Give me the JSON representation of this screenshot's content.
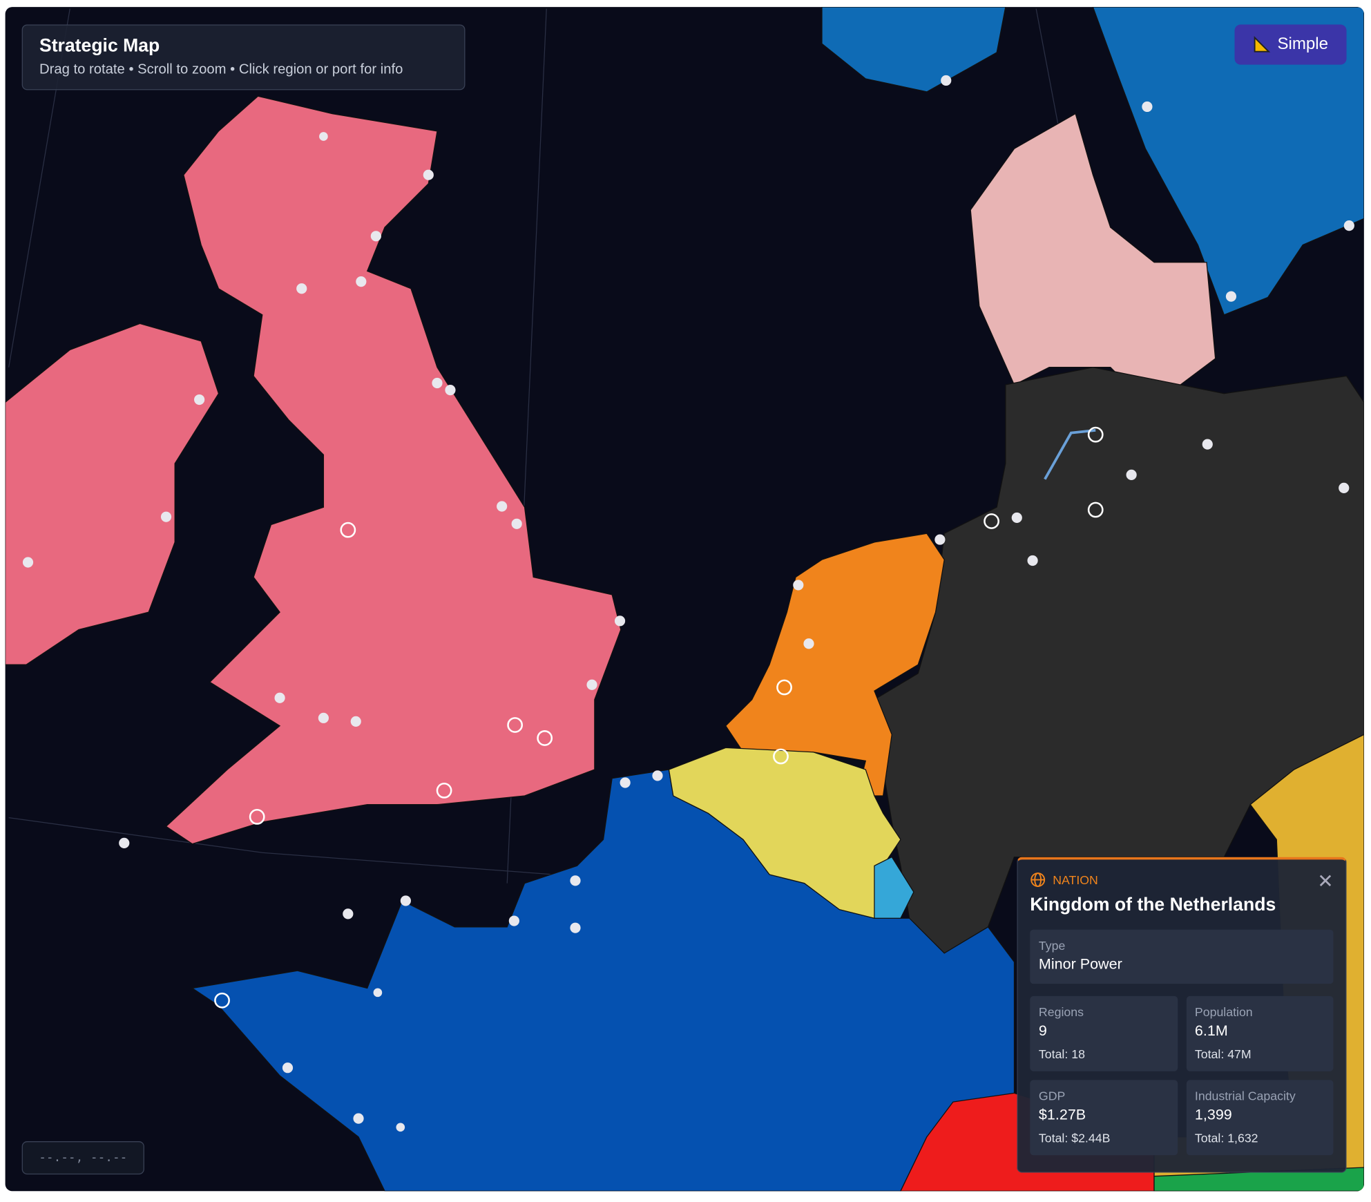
{
  "header": {
    "title": "Strategic Map",
    "subtitle": "Drag to rotate • Scroll to zoom • Click region or port for info"
  },
  "mode_button": {
    "label": "Simple"
  },
  "coordinates": "--.--, --.--",
  "info_panel": {
    "category": "NATION",
    "title": "Kingdom of the Netherlands",
    "type": {
      "label": "Type",
      "value": "Minor Power"
    },
    "stats": [
      {
        "label": "Regions",
        "value": "9",
        "total": "Total: 18"
      },
      {
        "label": "Population",
        "value": "6.1M",
        "total": "Total: 47M"
      },
      {
        "label": "GDP",
        "value": "$1.27B",
        "total": "Total: $2.44B"
      },
      {
        "label": "Industrial Capacity",
        "value": "1,399",
        "total": "Total: 1,632"
      }
    ]
  }
}
